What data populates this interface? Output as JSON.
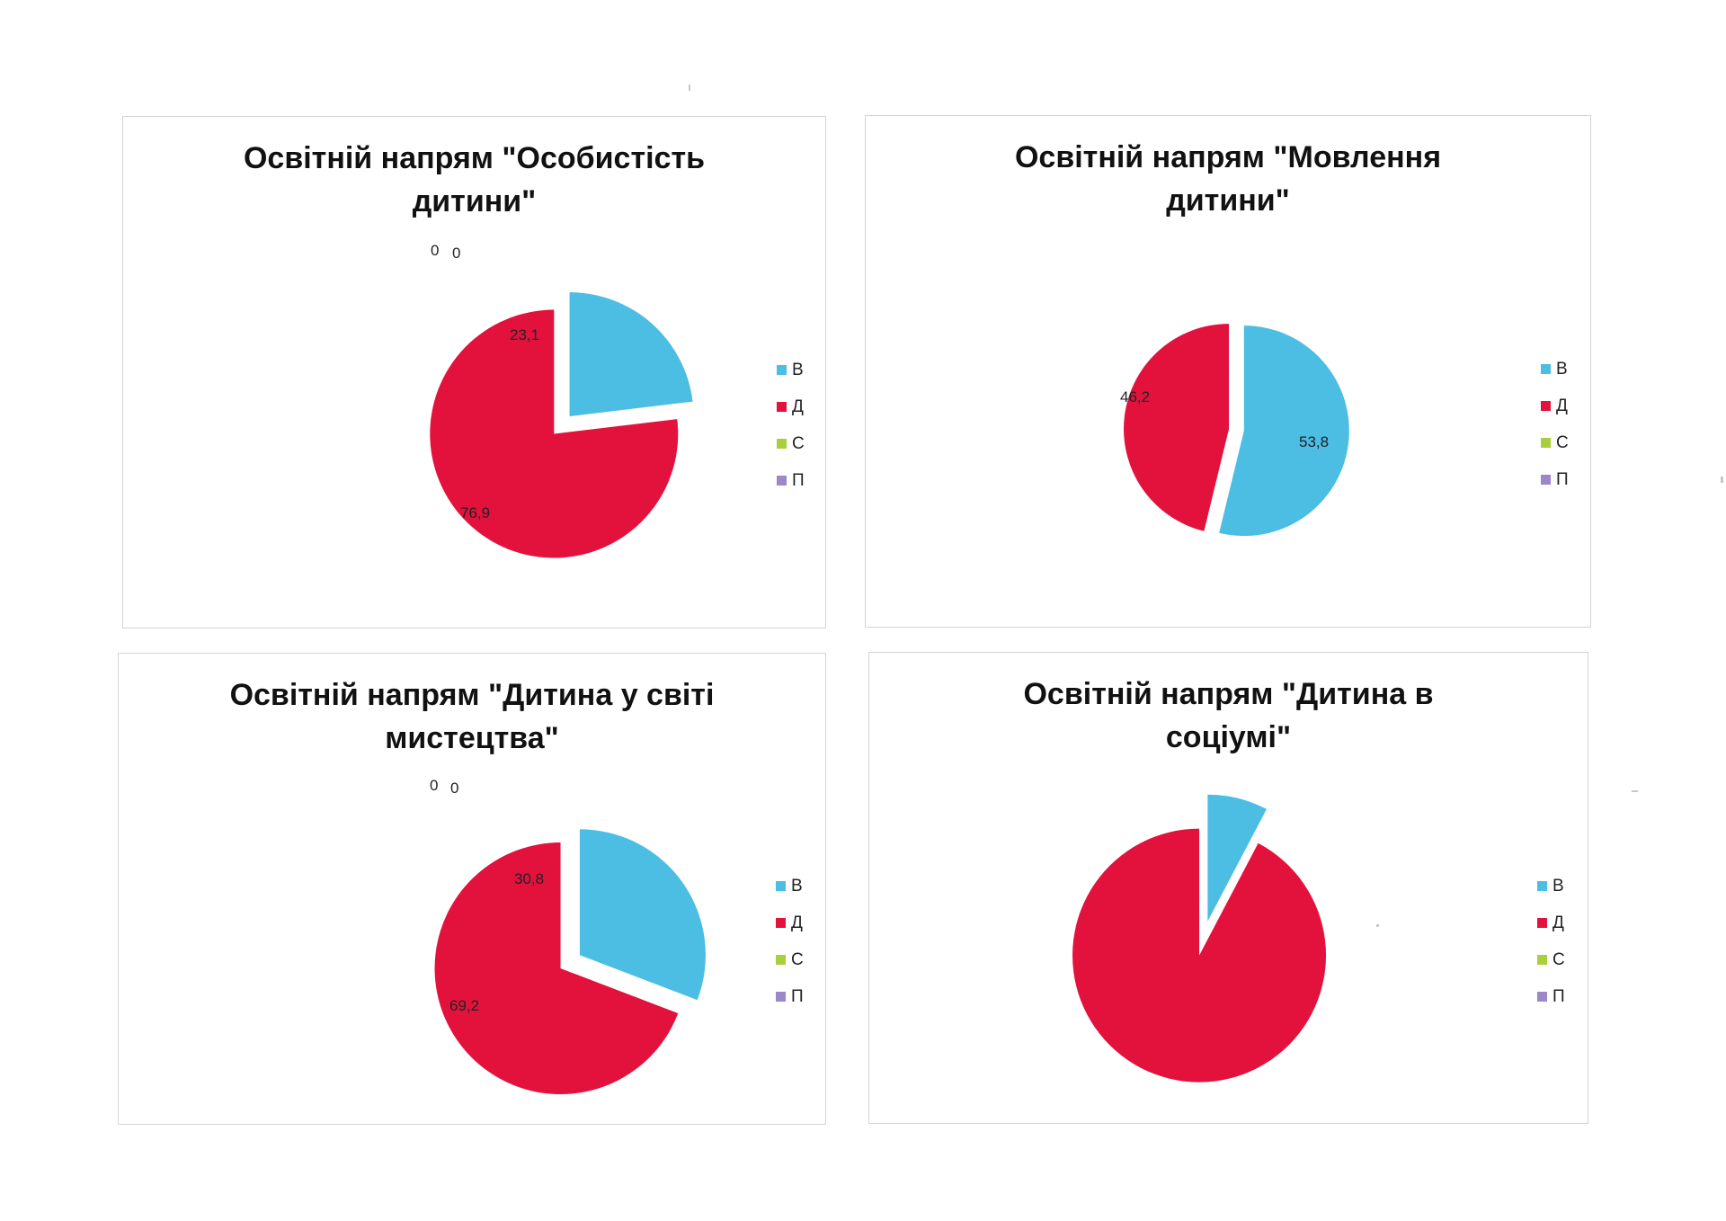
{
  "series_colors": {
    "В": "#4cbde3",
    "Д": "#e2123d",
    "С": "#a8cf3e",
    "П": "#9c87c9"
  },
  "legend_labels": [
    "В",
    "Д",
    "С",
    "П"
  ],
  "chart_data": [
    {
      "type": "pie",
      "title": "Освітній напрям \"Особистість\nдитини\"",
      "categories": [
        "В",
        "Д",
        "С",
        "П"
      ],
      "values": [
        23.1,
        76.9,
        0,
        0
      ],
      "data_labels": [
        "23,1",
        "76,9",
        "0",
        "0"
      ],
      "exploded": true,
      "legend_position": "right"
    },
    {
      "type": "pie",
      "title": "Освітній напрям \"Мовлення\nдитини\"",
      "categories": [
        "В",
        "Д",
        "С",
        "П"
      ],
      "values": [
        53.8,
        46.2,
        0,
        0
      ],
      "data_labels": [
        "53,8",
        "46,2",
        "",
        ""
      ],
      "exploded": true,
      "legend_position": "right"
    },
    {
      "type": "pie",
      "title": "Освітній напрям \"Дитина у світі\nмистецтва\"",
      "categories": [
        "В",
        "Д",
        "С",
        "П"
      ],
      "values": [
        30.8,
        69.2,
        0,
        0
      ],
      "data_labels": [
        "30,8",
        "69,2",
        "0",
        "0"
      ],
      "exploded": true,
      "legend_position": "right"
    },
    {
      "type": "pie",
      "title": "Освітній напрям \"Дитина в\nсоціумі\"",
      "categories": [
        "В",
        "Д",
        "С",
        "П"
      ],
      "values": [
        7.7,
        92.3,
        0,
        0
      ],
      "data_labels": [
        "",
        "",
        "",
        ""
      ],
      "exploded": true,
      "legend_position": "right"
    }
  ]
}
